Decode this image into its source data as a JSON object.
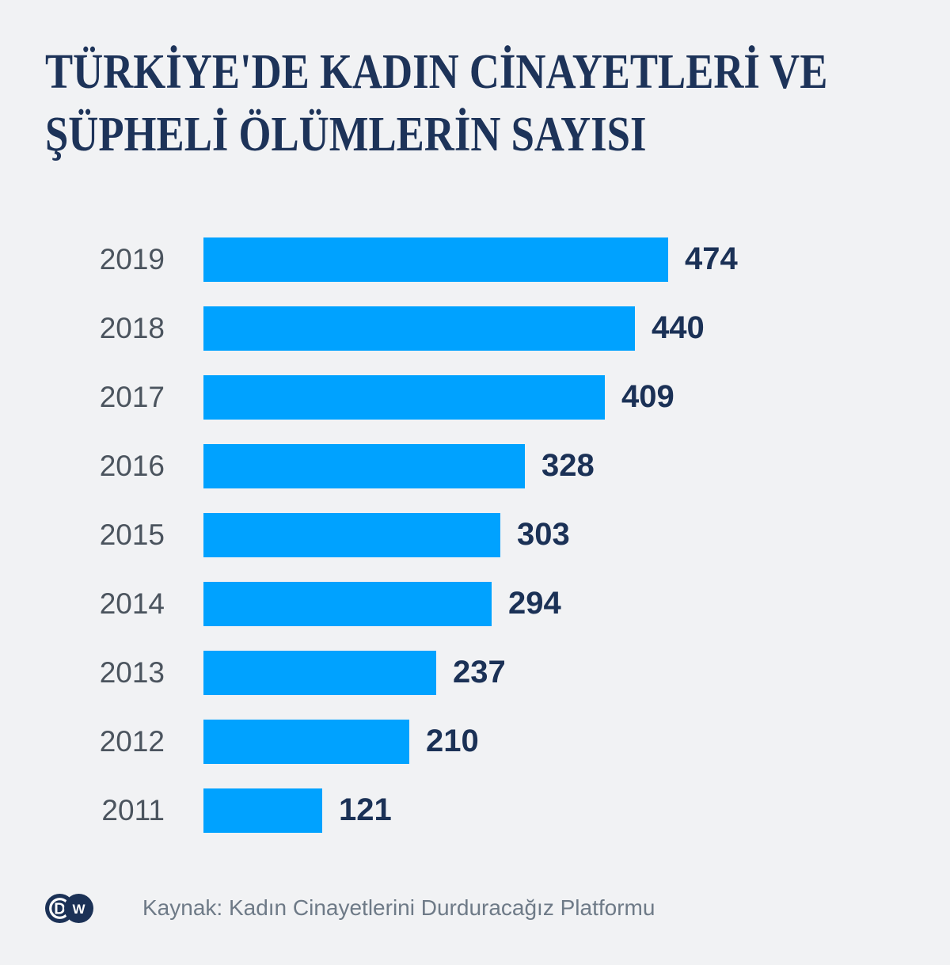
{
  "title": {
    "line1": "TÜRKİYE'DE KADIN CİNAYETLERİ VE",
    "line2": "ŞÜPHELİ ÖLÜMLERİN SAYISI"
  },
  "footer": {
    "source": "Kaynak: Kadın Cinayetlerini Durduracağız Platformu",
    "logo": {
      "left_letter": "D",
      "right_letter": "W"
    }
  },
  "colors": {
    "background": "#f1f2f4",
    "bar": "#00a2ff",
    "navy": "#1b3156",
    "title": "#1d3359",
    "year_label": "#4b545e",
    "source_text": "#6e7a87"
  },
  "chart_data": {
    "type": "bar",
    "orientation": "horizontal",
    "title": "TÜRKİYE'DE KADIN CİNAYETLERİ VE ŞÜPHELİ ÖLÜMLERİN SAYISI",
    "categories": [
      "2019",
      "2018",
      "2017",
      "2016",
      "2015",
      "2014",
      "2013",
      "2012",
      "2011"
    ],
    "values": [
      474,
      440,
      409,
      328,
      303,
      294,
      237,
      210,
      121
    ],
    "axis_max": 474,
    "value_labels_shown": true,
    "grid": false,
    "legend": false,
    "source": "Kaynak: Kadın Cinayetlerini Durduracağız Platformu"
  }
}
